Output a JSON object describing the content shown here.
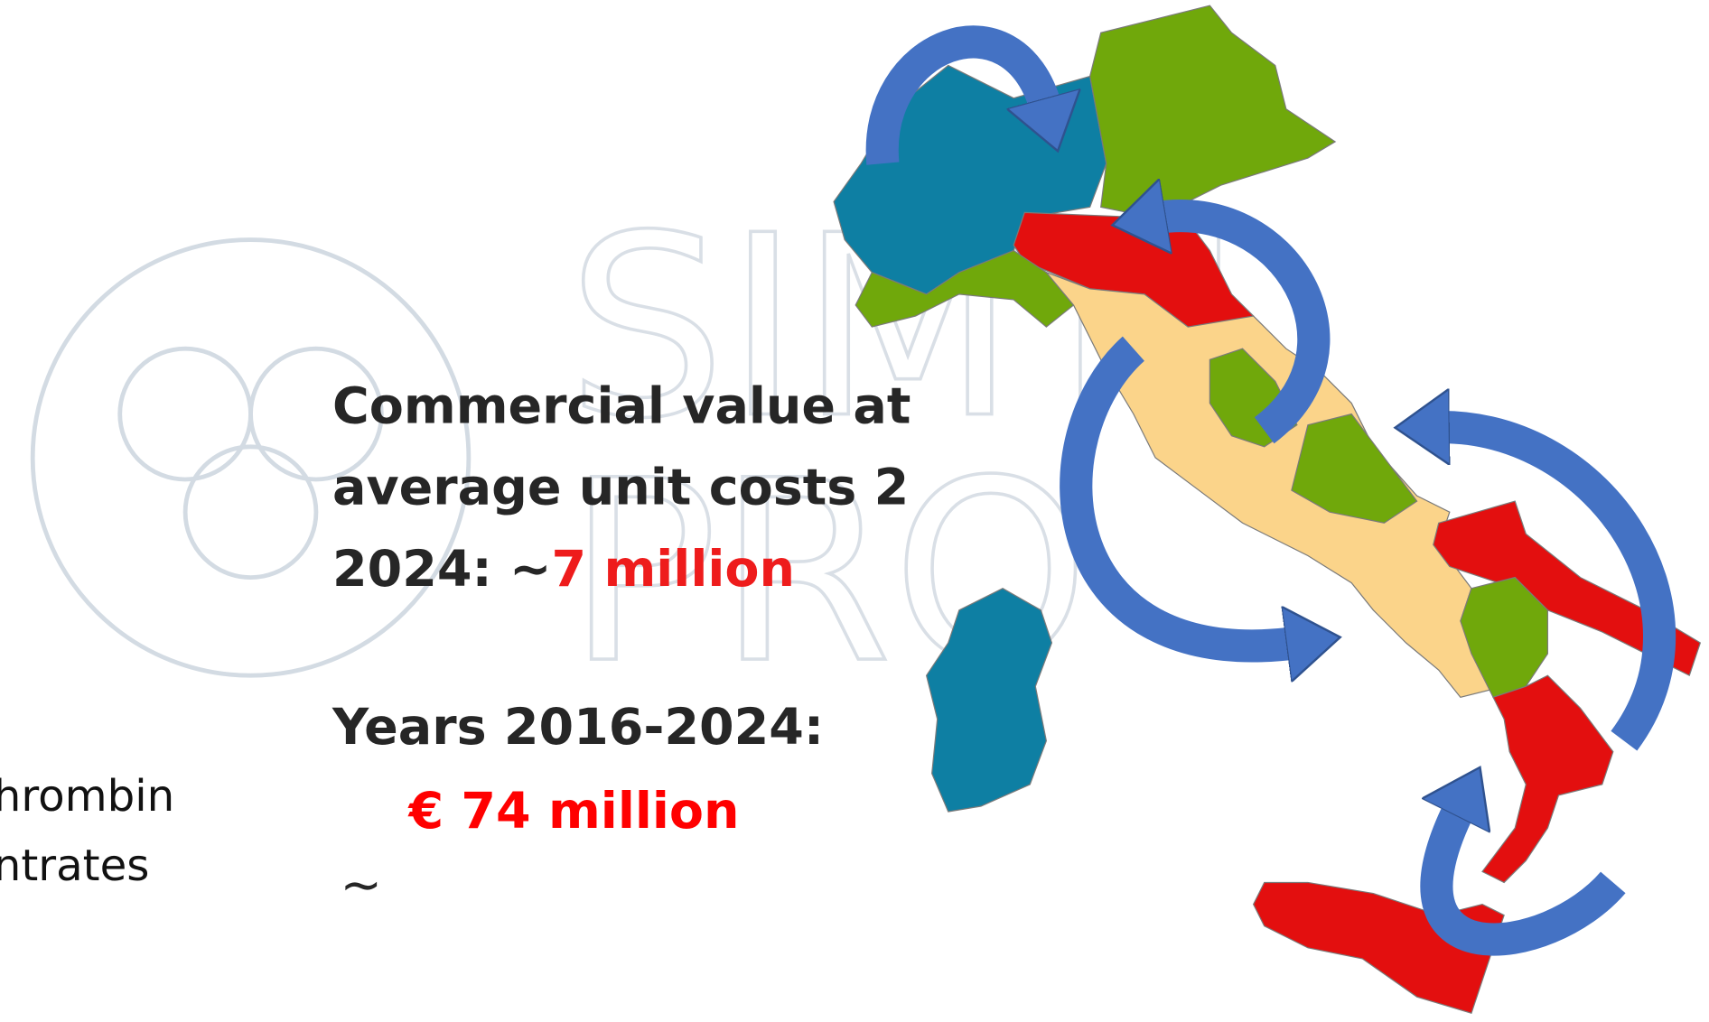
{
  "main_text": {
    "line1": "Commercial value at",
    "line2": "average unit costs 2",
    "line3_prefix": "2024: ∼",
    "line3_value": "7 million"
  },
  "years": {
    "label": "Years 2016-2024:",
    "value": "€ 74 million",
    "tilde": "∼"
  },
  "left_fragments": [
    "hrombin",
    "ntrates"
  ],
  "watermark": [
    "SIMTI",
    "PRO"
  ]
}
